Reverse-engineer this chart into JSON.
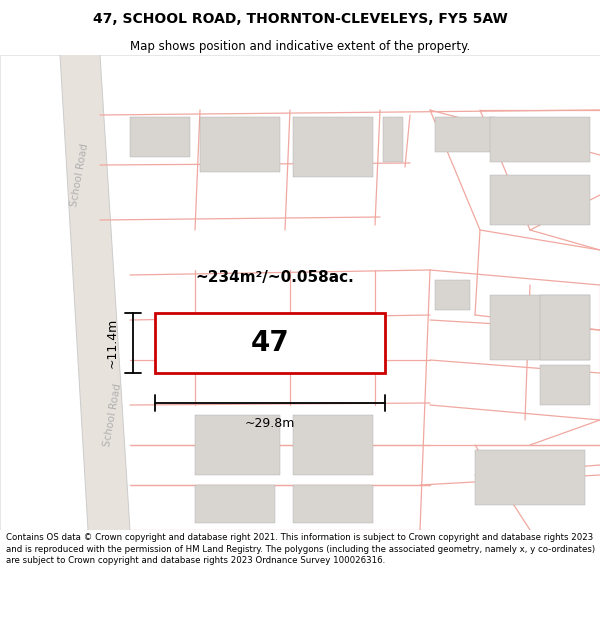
{
  "title_line1": "47, SCHOOL ROAD, THORNTON-CLEVELEYS, FY5 5AW",
  "title_line2": "Map shows position and indicative extent of the property.",
  "area_text": "~234m²/~0.058ac.",
  "property_number": "47",
  "width_label": "~29.8m",
  "height_label": "~11.4m",
  "footer_text": "Contains OS data © Crown copyright and database right 2021. This information is subject to Crown copyright and database rights 2023 and is reproduced with the permission of HM Land Registry. The polygons (including the associated geometry, namely x, y co-ordinates) are subject to Crown copyright and database rights 2023 Ordnance Survey 100026316.",
  "map_bg": "#ffffff",
  "road_strip_color": "#e8e2dd",
  "property_outline_color": "#cc0000",
  "building_fill": "#d8d4d0",
  "pink_line": "#f0a8a0",
  "road_label_color": "#b0b0b0",
  "title_bg": "#ffffff",
  "footer_bg": "#ffffff",
  "dim_line_color": "#1a1a1a"
}
